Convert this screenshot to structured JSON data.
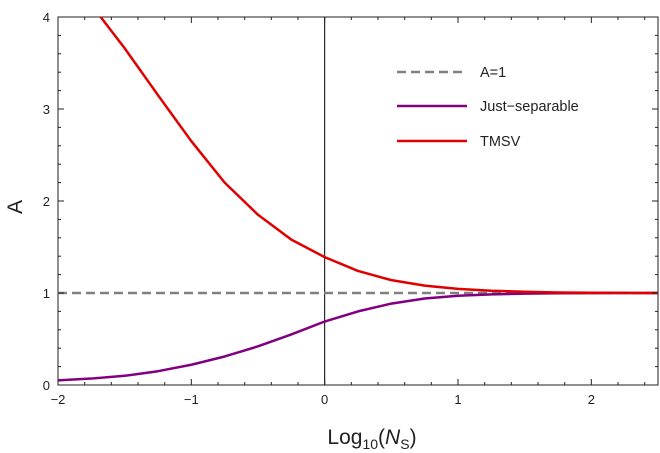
{
  "chart_data": {
    "type": "line",
    "xlabel": {
      "base": "Log",
      "sub": "10",
      "open": "(",
      "var": "N",
      "var_sub": "S",
      "close": ")"
    },
    "ylabel": "A",
    "xlim": [
      -2,
      2.5
    ],
    "ylim": [
      0,
      4
    ],
    "x_ticks": [
      -2,
      -1,
      0,
      1,
      2
    ],
    "x_tick_labels": [
      "−2",
      "−1",
      "0",
      "1",
      "2"
    ],
    "y_ticks": [
      0,
      1,
      2,
      3,
      4
    ],
    "y_tick_labels": [
      "0",
      "1",
      "2",
      "3",
      "4"
    ],
    "grid": false,
    "legend_position": "top-right",
    "vertical_reference_line_x": 0,
    "series": [
      {
        "name": "A=1",
        "style": "dashed",
        "color": "#808080",
        "x": [
          -2,
          2.5
        ],
        "y": [
          1,
          1
        ]
      },
      {
        "name": "Just−separable",
        "style": "solid",
        "color": "#800080",
        "x": [
          -2,
          -1.75,
          -1.5,
          -1.25,
          -1,
          -0.75,
          -0.5,
          -0.25,
          0,
          0.25,
          0.5,
          0.75,
          1,
          1.25,
          1.5,
          1.75,
          2,
          2.25,
          2.5
        ],
        "y": [
          0.05,
          0.07,
          0.1,
          0.15,
          0.22,
          0.31,
          0.42,
          0.55,
          0.69,
          0.8,
          0.885,
          0.94,
          0.97,
          0.985,
          0.993,
          0.997,
          0.999,
          1.0,
          1.0
        ]
      },
      {
        "name": "TMSV",
        "style": "solid",
        "color": "#e00000",
        "x": [
          -1.68,
          -1.5,
          -1.25,
          -1,
          -0.75,
          -0.5,
          -0.25,
          0,
          0.25,
          0.5,
          0.75,
          1,
          1.25,
          1.5,
          1.75,
          2,
          2.25,
          2.5
        ],
        "y": [
          4.0,
          3.66,
          3.15,
          2.65,
          2.2,
          1.85,
          1.58,
          1.39,
          1.24,
          1.14,
          1.08,
          1.045,
          1.025,
          1.013,
          1.006,
          1.003,
          1.001,
          1.0
        ]
      }
    ]
  }
}
